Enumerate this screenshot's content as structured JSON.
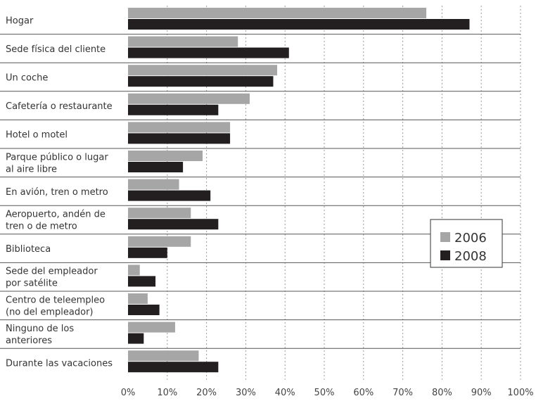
{
  "chart_data": {
    "type": "bar",
    "orientation": "horizontal",
    "categories": [
      [
        "Hogar"
      ],
      [
        "Sede física del cliente"
      ],
      [
        "Un coche"
      ],
      [
        "Cafetería o restaurante"
      ],
      [
        "Hotel o motel"
      ],
      [
        "Parque público o lugar",
        "al aire libre"
      ],
      [
        "En avión, tren o metro"
      ],
      [
        "Aeropuerto, andén de",
        "tren o de metro"
      ],
      [
        "Biblioteca"
      ],
      [
        "Sede del empleador",
        "por satélite"
      ],
      [
        "Centro de teleempleo",
        "(no del empleador)"
      ],
      [
        "Ninguno de los",
        "anteriores"
      ],
      [
        "Durante las vacaciones"
      ]
    ],
    "series": [
      {
        "name": "2006",
        "color": "#a6a6a6",
        "values": [
          76,
          28,
          38,
          31,
          26,
          19,
          13,
          16,
          16,
          3,
          5,
          12,
          18
        ]
      },
      {
        "name": "2008",
        "color": "#231f20",
        "values": [
          87,
          41,
          37,
          23,
          26,
          14,
          21,
          23,
          10,
          7,
          8,
          4,
          23
        ]
      }
    ],
    "xlim": [
      0,
      100
    ],
    "xticks": [
      "0%",
      "10%",
      "20%",
      "30%",
      "40%",
      "50%",
      "60%",
      "70%",
      "80%",
      "90%",
      "100%"
    ],
    "grid": true,
    "legend": {
      "position": "right",
      "entries": [
        "2006",
        "2008"
      ]
    }
  }
}
